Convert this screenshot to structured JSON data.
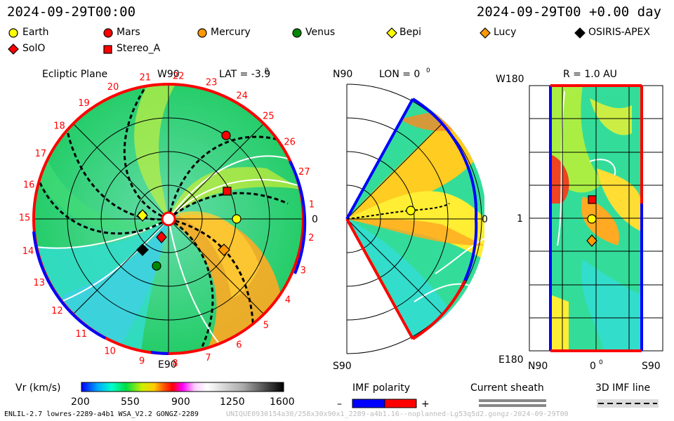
{
  "header": {
    "timestamp_left": "2024-09-29T00:00",
    "timestamp_right": "2024-09-29T00 +0.00 day"
  },
  "legend": {
    "items": [
      {
        "label": "Earth",
        "marker": "circle",
        "color": "#ffff00"
      },
      {
        "label": "Mars",
        "marker": "circle",
        "color": "#ff0000"
      },
      {
        "label": "Mercury",
        "marker": "circle",
        "color": "#ff9900"
      },
      {
        "label": "Venus",
        "marker": "circle",
        "color": "#008800"
      },
      {
        "label": "Bepi",
        "marker": "diamond",
        "color": "#ffff00"
      },
      {
        "label": "Lucy",
        "marker": "diamond",
        "color": "#ff9900"
      },
      {
        "label": "OSIRIS-APEX",
        "marker": "diamond",
        "color": "#000000"
      },
      {
        "label": "SolO",
        "marker": "diamond",
        "color": "#ff0000"
      },
      {
        "label": "Stereo_A",
        "marker": "square",
        "color": "#ff0000"
      }
    ]
  },
  "ecliptic": {
    "title": "Ecliptic Plane",
    "top_label": "W90",
    "bottom_label": "E90",
    "right_label": "0",
    "lat_label": "LAT = -3.9",
    "degree_mark": "0",
    "carrington_numbers": [
      "1",
      "2",
      "3",
      "4",
      "5",
      "6",
      "7",
      "8",
      "9",
      "10",
      "11",
      "12",
      "13",
      "14",
      "15",
      "16",
      "17",
      "18",
      "19",
      "20",
      "21",
      "22",
      "23",
      "24",
      "25",
      "26",
      "27"
    ]
  },
  "meridional": {
    "top_label": "N90",
    "bottom_label": "S90",
    "right_label": "0",
    "lon_label": "LON = 0",
    "degree_mark": "0"
  },
  "sphere": {
    "top_label": "W180",
    "bottom_label": "E180",
    "mid_label": "1",
    "r_label": "R = 1.0 AU",
    "x_left": "N90",
    "x_mid": "0",
    "x_right": "S90",
    "degree_mark": "0"
  },
  "colorbar": {
    "title": "Vr (km/s)",
    "ticks": [
      "200",
      "550",
      "900",
      "1250",
      "1600"
    ]
  },
  "imf": {
    "title": "IMF polarity",
    "minus": "–",
    "plus": "+",
    "negative_color": "#0000ff",
    "positive_color": "#ff0000"
  },
  "sheath": {
    "title": "Current sheath"
  },
  "imfline": {
    "title": "3D IMF line"
  },
  "footer": {
    "model": "ENLIL-2.7 lowres-2289-a4b1 WSA_V2.2 GONGZ-2289",
    "id": "UNIQUE0930154a30/258x30x90x1_2289-a4b1.16--noplanned-Lg53q5d2.gongz-2024-09-29T00"
  }
}
